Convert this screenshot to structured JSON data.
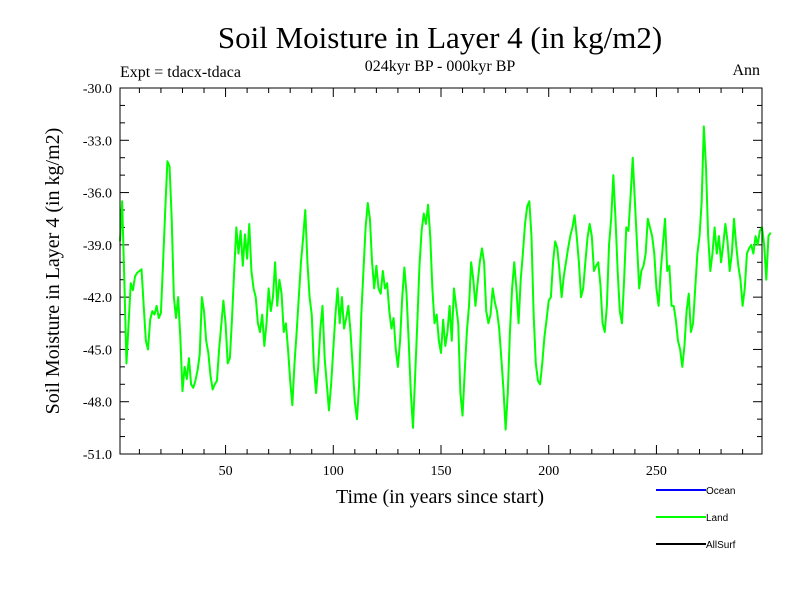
{
  "chart_data": {
    "type": "line",
    "title": "Soil Moisture in Layer 4 (in kg/m2)",
    "subtitle": "024kyr BP - 000kyr BP",
    "left_label": "Expt = tdacx-tdaca",
    "right_label": "Ann",
    "xlabel": "Time (in years since start)",
    "ylabel": "Soil Moisture in Layer 4 (in kg/m2)",
    "xlim": [
      1,
      299
    ],
    "ylim": [
      -51.0,
      -30.0
    ],
    "x_ticks": [
      50,
      100,
      150,
      200,
      250
    ],
    "x_tick_labels": [
      "50",
      "100",
      "150",
      "200",
      "250"
    ],
    "y_ticks": [
      -51.0,
      -48.0,
      -45.0,
      -42.0,
      -39.0,
      -36.0,
      -33.0,
      -30.0
    ],
    "y_tick_labels": [
      "-51.0",
      "-48.0",
      "-45.0",
      "-42.0",
      "-39.0",
      "-36.0",
      "-33.0",
      "-30.0"
    ],
    "legend": [
      {
        "name": "Ocean",
        "color": "#0000ff"
      },
      {
        "name": "Land",
        "color": "#00ff00"
      },
      {
        "name": "AllSurf",
        "color": "#000000"
      }
    ],
    "series": [
      {
        "name": "Land",
        "color": "#00ff00",
        "x_start": 1,
        "x_step": 1,
        "values": [
          -38.8,
          -36.5,
          -41.0,
          -45.8,
          -43.5,
          -41.2,
          -41.6,
          -40.8,
          -40.6,
          -40.5,
          -40.4,
          -42.5,
          -44.5,
          -45.0,
          -43.3,
          -42.8,
          -43.0,
          -42.5,
          -43.2,
          -42.9,
          -40.0,
          -37.0,
          -34.2,
          -34.5,
          -37.5,
          -42.0,
          -43.2,
          -42.0,
          -44.3,
          -47.4,
          -46.0,
          -46.7,
          -45.5,
          -47.0,
          -47.2,
          -46.8,
          -46.2,
          -45.3,
          -42.0,
          -42.8,
          -44.5,
          -45.2,
          -46.5,
          -47.3,
          -47.0,
          -46.8,
          -45.0,
          -43.6,
          -42.2,
          -43.5,
          -45.8,
          -45.5,
          -43.2,
          -40.5,
          -38.0,
          -39.5,
          -38.2,
          -40.2,
          -38.4,
          -39.8,
          -37.8,
          -40.5,
          -41.5,
          -42.0,
          -43.5,
          -44.0,
          -43.0,
          -44.8,
          -43.5,
          -41.5,
          -42.8,
          -42.0,
          -40.0,
          -42.5,
          -41.0,
          -41.8,
          -44.0,
          -43.5,
          -45.0,
          -46.8,
          -48.2,
          -45.8,
          -44.0,
          -42.0,
          -40.0,
          -38.6,
          -37.0,
          -40.0,
          -42.0,
          -43.0,
          -46.0,
          -47.5,
          -46.0,
          -43.8,
          -42.5,
          -45.5,
          -47.0,
          -48.5,
          -47.0,
          -45.0,
          -43.0,
          -41.5,
          -43.5,
          -42.0,
          -43.8,
          -43.2,
          -42.5,
          -44.0,
          -46.0,
          -48.0,
          -49.0,
          -47.0,
          -43.0,
          -40.5,
          -38.0,
          -36.6,
          -37.5,
          -40.0,
          -41.5,
          -40.2,
          -41.5,
          -41.8,
          -40.5,
          -41.5,
          -41.2,
          -42.8,
          -43.8,
          -43.2,
          -45.0,
          -46.0,
          -44.5,
          -42.0,
          -40.3,
          -41.8,
          -44.5,
          -47.5,
          -49.5,
          -46.5,
          -43.5,
          -40.2,
          -38.2,
          -37.2,
          -37.8,
          -36.7,
          -38.5,
          -41.5,
          -43.5,
          -43.0,
          -44.5,
          -45.2,
          -43.3,
          -44.8,
          -44.0,
          -42.5,
          -44.5,
          -41.5,
          -42.5,
          -43.5,
          -47.5,
          -48.8,
          -46.3,
          -44.0,
          -42.5,
          -40.0,
          -41.0,
          -42.5,
          -41.2,
          -40.0,
          -39.2,
          -40.0,
          -42.8,
          -43.5,
          -43.0,
          -41.5,
          -42.3,
          -42.8,
          -43.8,
          -45.5,
          -47.3,
          -49.6,
          -47.5,
          -44.0,
          -41.5,
          -40.0,
          -41.5,
          -43.5,
          -41.0,
          -39.5,
          -37.8,
          -36.8,
          -36.5,
          -38.5,
          -43.0,
          -45.8,
          -46.8,
          -47.0,
          -45.8,
          -44.3,
          -43.3,
          -42.2,
          -42.0,
          -40.0,
          -38.8,
          -39.2,
          -40.5,
          -42.0,
          -40.8,
          -40.0,
          -39.2,
          -38.5,
          -38.0,
          -37.3,
          -38.5,
          -40.0,
          -42.0,
          -41.5,
          -40.0,
          -38.6,
          -37.8,
          -38.5,
          -40.5,
          -40.2,
          -40.0,
          -41.3,
          -43.5,
          -44.0,
          -42.5,
          -39.0,
          -37.5,
          -35.0,
          -37.5,
          -40.5,
          -42.8,
          -43.5,
          -41.0,
          -38.0,
          -38.2,
          -36.2,
          -34.0,
          -36.5,
          -39.0,
          -41.5,
          -40.5,
          -40.2,
          -39.5,
          -37.5,
          -38.0,
          -38.5,
          -39.5,
          -41.5,
          -42.5,
          -40.5,
          -39.0,
          -37.5,
          -40.5,
          -40.2,
          -42.5,
          -42.5,
          -43.3,
          -44.5,
          -45.0,
          -46.0,
          -44.8,
          -42.8,
          -41.8,
          -44.0,
          -43.5,
          -41.5,
          -39.5,
          -38.5,
          -36.5,
          -32.2,
          -34.5,
          -38.5,
          -40.5,
          -39.5,
          -38.0,
          -39.5,
          -38.5,
          -40.0,
          -39.0,
          -37.8,
          -38.8,
          -40.5,
          -39.5,
          -37.5,
          -39.0,
          -40.2,
          -41.0,
          -42.5,
          -41.5,
          -39.5,
          -39.2,
          -39.0,
          -39.5,
          -38.5,
          -39.0,
          -38.2,
          -38.0,
          -39.0,
          -41.0,
          -38.5,
          -38.3
        ]
      }
    ]
  }
}
